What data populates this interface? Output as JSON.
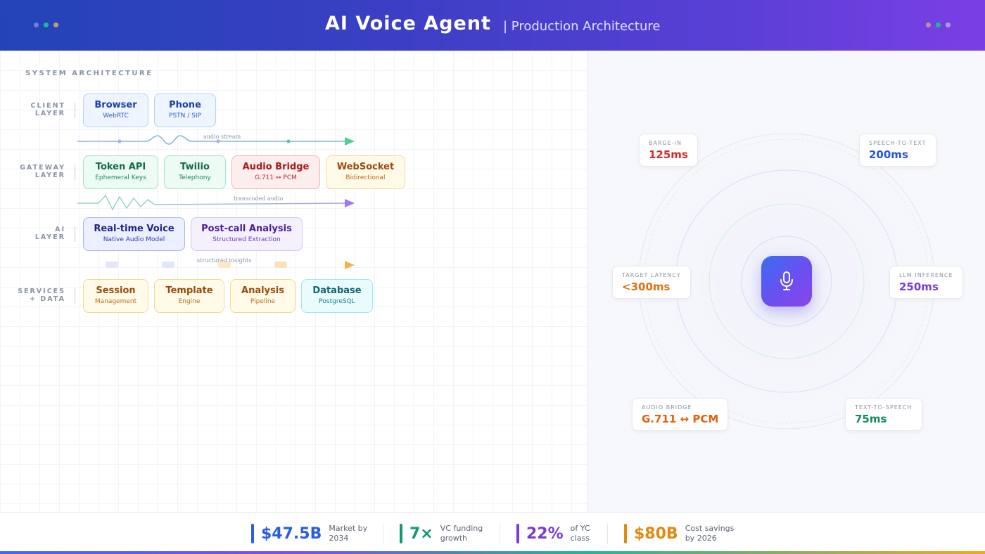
{
  "header": {
    "title": "AI Voice Agent",
    "subtitle": "| Production Architecture"
  },
  "colors": {
    "dots_left": [
      "#6f7fe0",
      "#20b894",
      "#b8a070"
    ],
    "dots_right": [
      "#c98aa8",
      "#20b894",
      "#a6a2f0"
    ]
  },
  "architecture": {
    "section_label": "SYSTEM ARCHITECTURE",
    "layers": [
      {
        "label": "CLIENT LAYER",
        "nodes": [
          {
            "title": "Browser",
            "sub": "WebRTC"
          },
          {
            "title": "Phone",
            "sub": "PSTN / SIP"
          }
        ]
      },
      {
        "label": "GATEWAY LAYER",
        "nodes": [
          {
            "title": "Token API",
            "sub": "Ephemeral Keys"
          },
          {
            "title": "Twilio",
            "sub": "Telephony"
          },
          {
            "title": "Audio Bridge",
            "sub": "G.711 ↔ PCM"
          },
          {
            "title": "WebSocket",
            "sub": "Bidirectional"
          }
        ]
      },
      {
        "label": "AI LAYER",
        "nodes": [
          {
            "title": "Real-time Voice",
            "sub": "Native Audio Model"
          },
          {
            "title": "Post-call Analysis",
            "sub": "Structured Extraction"
          }
        ]
      },
      {
        "label": "SERVICES + DATA",
        "nodes": [
          {
            "title": "Session",
            "sub": "Management"
          },
          {
            "title": "Template",
            "sub": "Engine"
          },
          {
            "title": "Analysis",
            "sub": "Pipeline"
          },
          {
            "title": "Database",
            "sub": "PostgreSQL"
          }
        ]
      }
    ],
    "flows": [
      "audio stream",
      "transcoded audio",
      "structured insights"
    ]
  },
  "metrics": [
    {
      "label": "BARGE-IN",
      "value": "125ms",
      "color": "#d42a2a"
    },
    {
      "label": "SPEECH-TO-TEXT",
      "value": "200ms",
      "color": "#2456d8"
    },
    {
      "label": "TARGET LATENCY",
      "value": "<300ms",
      "color": "#e0700f"
    },
    {
      "label": "LLM INFERENCE",
      "value": "250ms",
      "color": "#7a3ad8"
    },
    {
      "label": "AUDIO BRIDGE",
      "value": "G.711 ↔ PCM",
      "color": "#e0620f"
    },
    {
      "label": "TEXT-TO-SPEECH",
      "value": "75ms",
      "color": "#138a5e"
    }
  ],
  "center_icon": "microphone-icon",
  "stats": [
    {
      "value": "$47.5B",
      "desc1": "Market by",
      "desc2": "2034",
      "color": "#2a5ee0"
    },
    {
      "value": "7×",
      "desc1": "VC funding",
      "desc2": "growth",
      "color": "#16996a"
    },
    {
      "value": "22%",
      "desc1": "of YC",
      "desc2": "class",
      "color": "#7a3ad8"
    },
    {
      "value": "$80B",
      "desc1": "Cost savings",
      "desc2": "by 2026",
      "color": "#e08a10"
    }
  ]
}
